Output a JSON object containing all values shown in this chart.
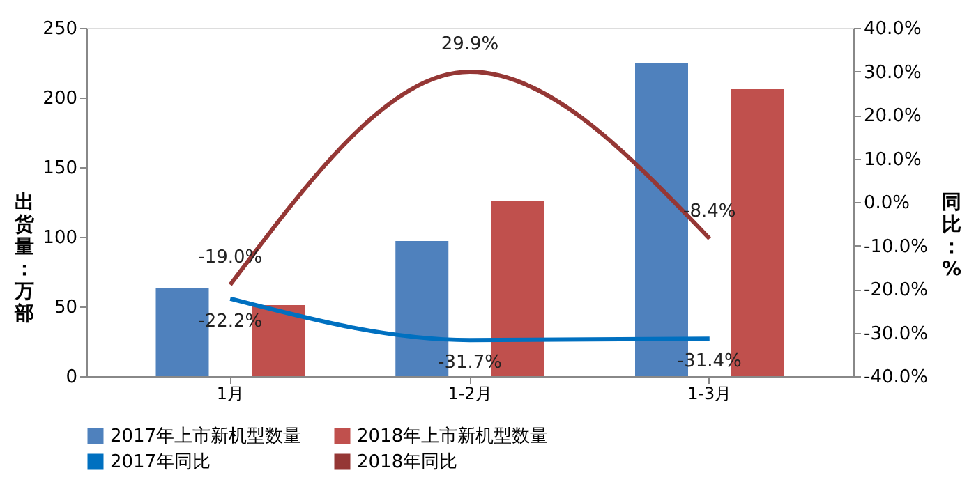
{
  "chart_data": {
    "type": "bar",
    "categories": [
      "1月",
      "1-2月",
      "1-3月"
    ],
    "ylabel": "出货量：万部",
    "y2label": "同比：%",
    "ylim": [
      0,
      250
    ],
    "yticks": [
      0,
      50,
      100,
      150,
      200,
      250
    ],
    "y2lim": [
      -40,
      40
    ],
    "y2ticks": [
      {
        "value": -40,
        "label": "-40.0%"
      },
      {
        "value": -30,
        "label": "-30.0%"
      },
      {
        "value": -20,
        "label": "-20.0%"
      },
      {
        "value": -10,
        "label": "-10.0%"
      },
      {
        "value": 0,
        "label": "0.0%"
      },
      {
        "value": 10,
        "label": "10.0%"
      },
      {
        "value": 20,
        "label": "20.0%"
      },
      {
        "value": 30,
        "label": "30.0%"
      },
      {
        "value": 40,
        "label": "40.0%"
      }
    ],
    "legend": "bottom",
    "series": [
      {
        "name": "2017年上市新机型数量",
        "color": "#4f81bd",
        "values": [
          63,
          97,
          225
        ]
      },
      {
        "name": "2018年上市新机型数量",
        "color": "#c0504d",
        "values": [
          51,
          126,
          206
        ]
      },
      {
        "name": "2017年同比",
        "type": "line",
        "axis": "y2",
        "color": "#0070c0",
        "values": [
          -22.2,
          -31.7,
          -31.4
        ],
        "value_labels": [
          "-22.2%",
          "-31.7%",
          "-31.4%"
        ]
      },
      {
        "name": "2018年同比",
        "type": "line",
        "axis": "y2",
        "color": "#953735",
        "values": [
          -19.0,
          29.9,
          -8.4
        ],
        "value_labels": [
          "-19.0%",
          "29.9%",
          "-8.4%"
        ]
      }
    ]
  }
}
